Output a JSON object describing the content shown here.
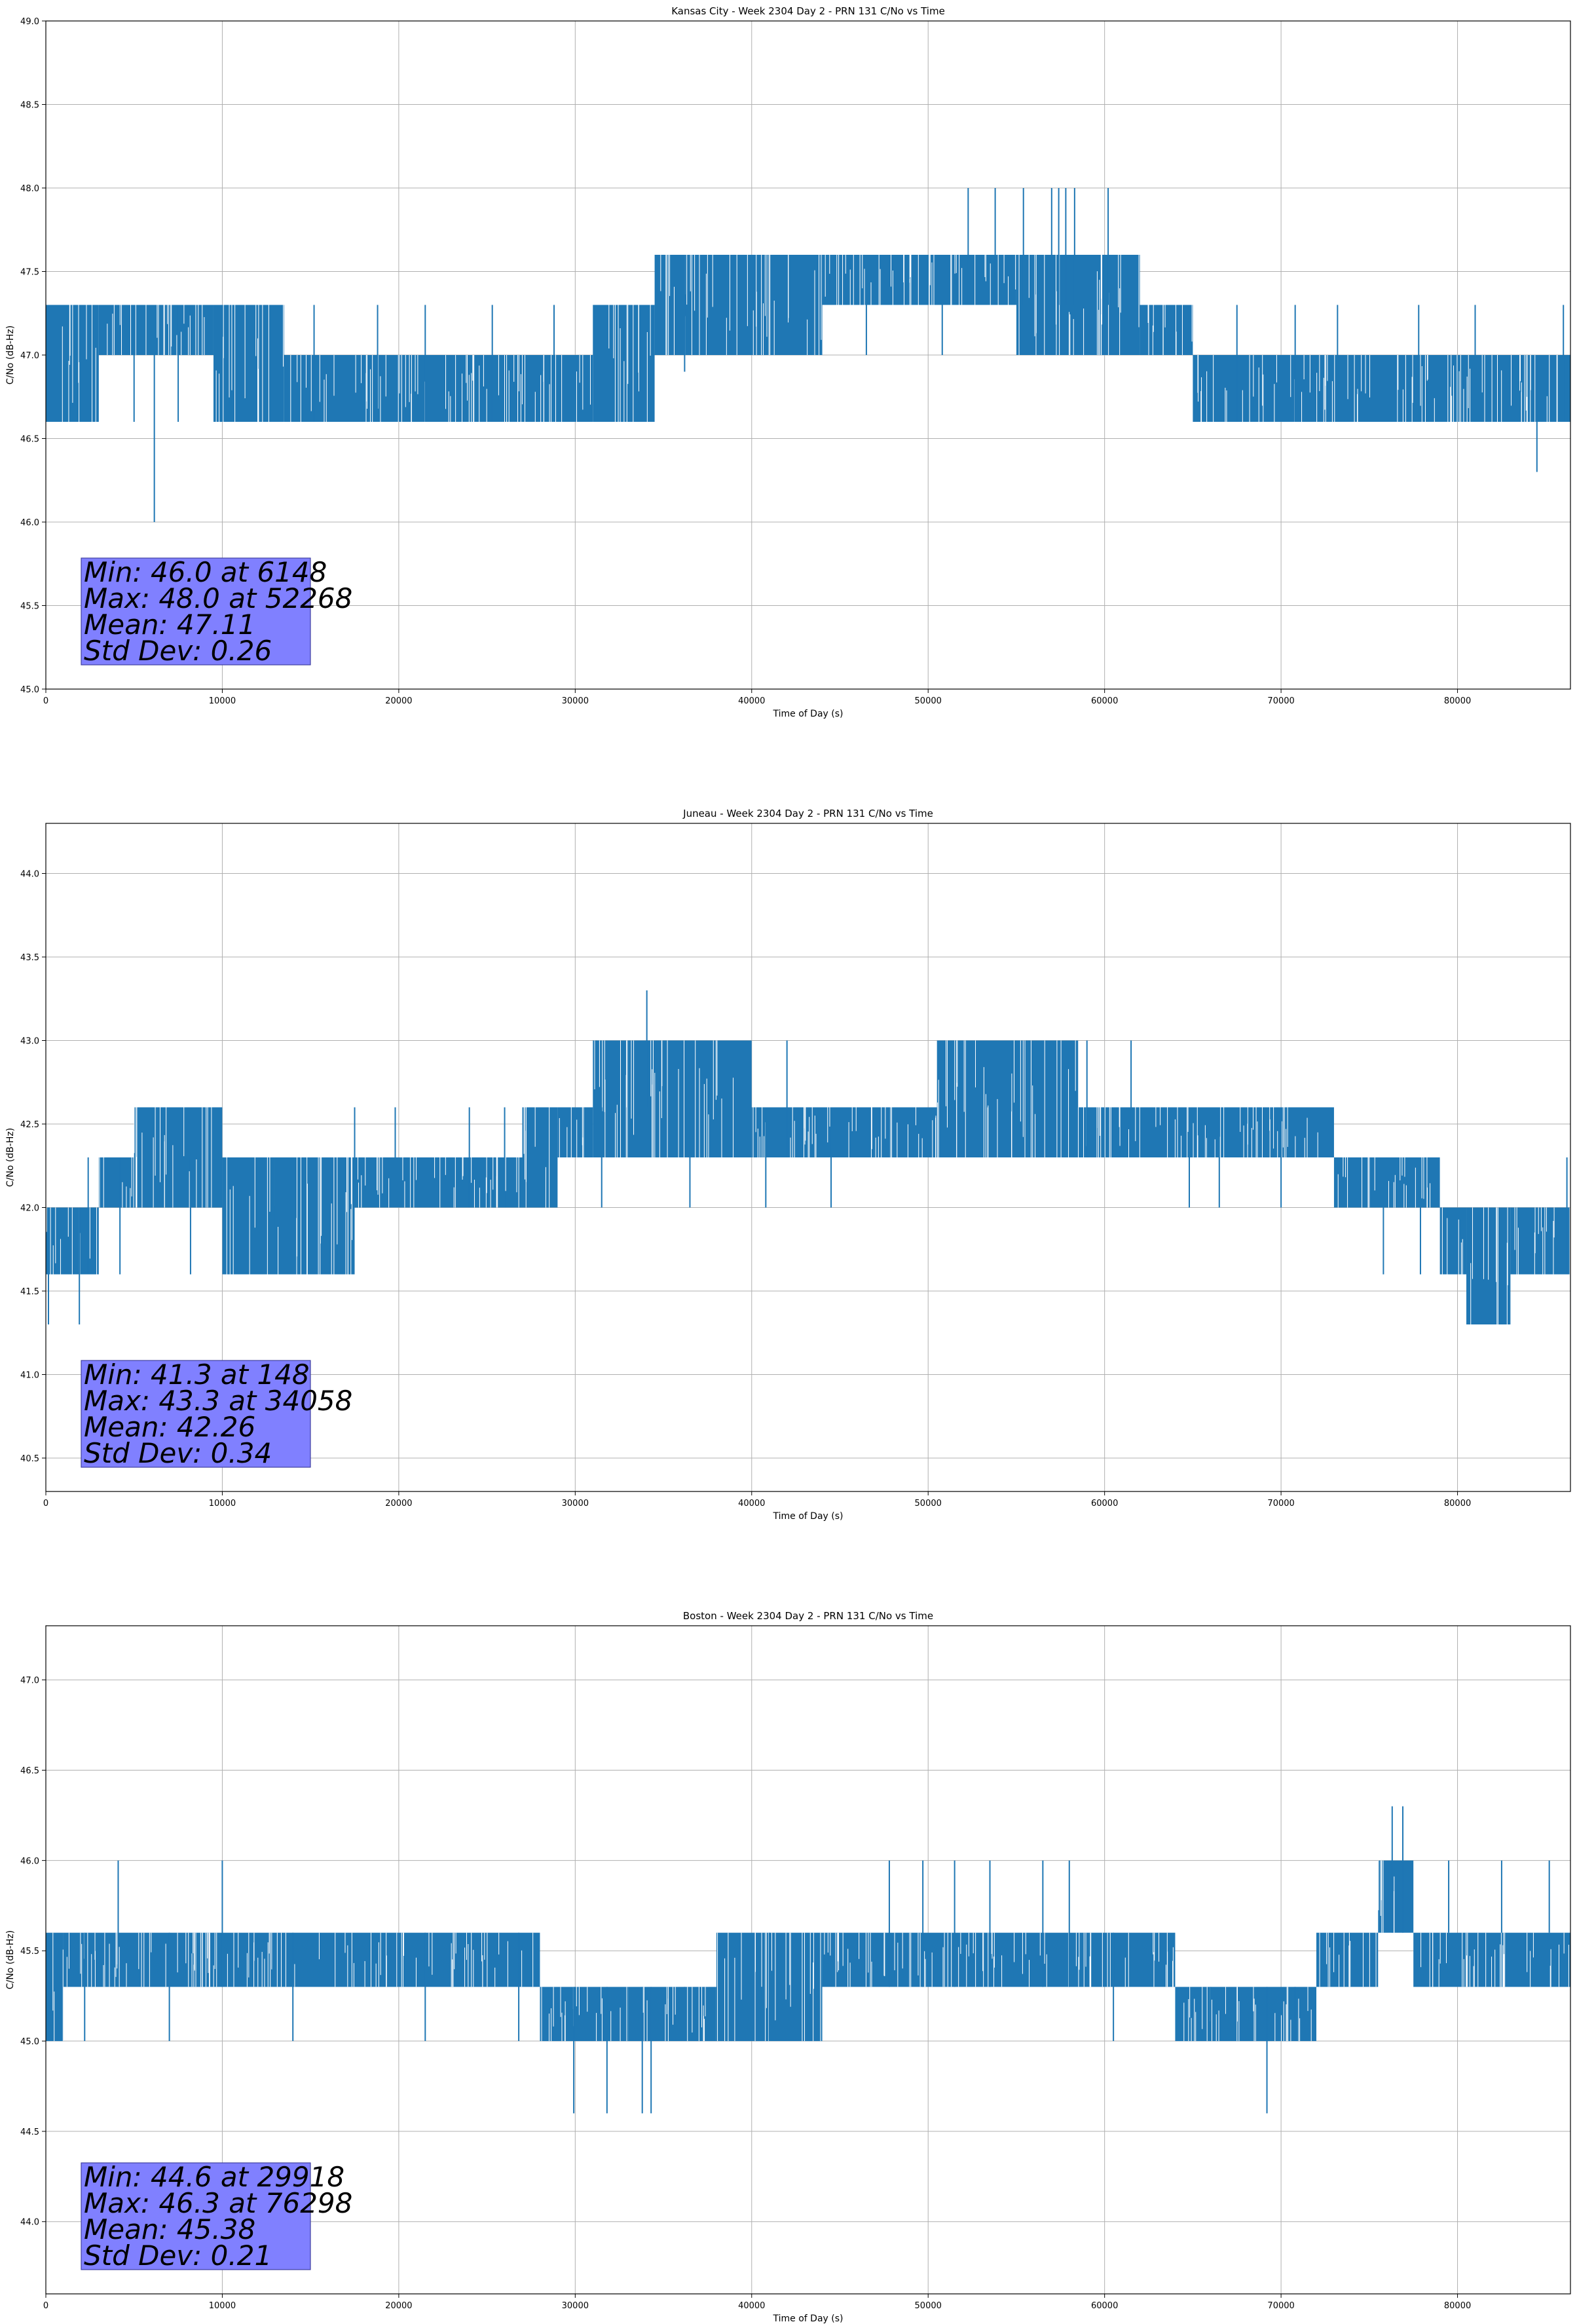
{
  "chart_data": [
    {
      "type": "line",
      "title": "Kansas City - Week 2304 Day 2 - PRN 131 C/No vs Time",
      "xlabel": "Time of Day (s)",
      "ylabel": "C/No (dB-Hz)",
      "xlim": [
        0,
        86400
      ],
      "ylim": [
        45.0,
        49.0
      ],
      "xticks": [
        "0",
        "10000",
        "20000",
        "30000",
        "40000",
        "50000",
        "60000",
        "70000",
        "80000"
      ],
      "yticks": [
        "45.0",
        "45.5",
        "46.0",
        "46.5",
        "47.0",
        "47.5",
        "48.0",
        "48.5",
        "49.0"
      ],
      "grid": true,
      "color": "#1f77b4",
      "series": [
        {
          "bands": [
            {
              "x0": 0,
              "x1": 3000,
              "lo": 46.6,
              "hi": 47.3
            },
            {
              "x0": 3000,
              "x1": 9500,
              "lo": 47.0,
              "hi": 47.3
            },
            {
              "x0": 9500,
              "x1": 13500,
              "lo": 46.6,
              "hi": 47.3
            },
            {
              "x0": 13500,
              "x1": 31000,
              "lo": 46.6,
              "hi": 47.0
            },
            {
              "x0": 31000,
              "x1": 34500,
              "lo": 46.6,
              "hi": 47.3
            },
            {
              "x0": 34500,
              "x1": 44000,
              "lo": 47.0,
              "hi": 47.6
            },
            {
              "x0": 44000,
              "x1": 55000,
              "lo": 47.3,
              "hi": 47.6
            },
            {
              "x0": 55000,
              "x1": 62000,
              "lo": 47.0,
              "hi": 47.6
            },
            {
              "x0": 62000,
              "x1": 65000,
              "lo": 47.0,
              "hi": 47.3
            },
            {
              "x0": 65000,
              "x1": 86400,
              "lo": 46.6,
              "hi": 47.0
            }
          ],
          "spikes": [
            [
              6148,
              46.0,
              47.0
            ],
            [
              52268,
              47.3,
              48.0
            ],
            [
              53800,
              47.3,
              48.0
            ],
            [
              55400,
              47.3,
              48.0
            ],
            [
              57000,
              47.3,
              48.0
            ],
            [
              57400,
              47.3,
              48.0
            ],
            [
              57800,
              47.3,
              48.0
            ],
            [
              58300,
              47.3,
              48.0
            ],
            [
              60200,
              47.3,
              48.0
            ],
            [
              84500,
              46.3,
              47.0
            ],
            [
              1200,
              46.6,
              47.3
            ],
            [
              5000,
              46.6,
              47.3
            ],
            [
              7500,
              46.6,
              47.3
            ],
            [
              15200,
              46.6,
              47.3
            ],
            [
              18800,
              46.6,
              47.3
            ],
            [
              21500,
              46.6,
              47.3
            ],
            [
              25300,
              46.6,
              47.3
            ],
            [
              28800,
              46.6,
              47.3
            ],
            [
              36200,
              46.9,
              47.6
            ],
            [
              46500,
              47.0,
              47.3
            ],
            [
              50800,
              47.0,
              47.3
            ],
            [
              67500,
              46.6,
              47.3
            ],
            [
              70800,
              46.6,
              47.3
            ],
            [
              73200,
              46.6,
              47.3
            ],
            [
              77800,
              46.6,
              47.3
            ],
            [
              81000,
              46.6,
              47.3
            ],
            [
              86000,
              46.6,
              47.3
            ]
          ]
        }
      ],
      "annotation": [
        "Min: 46.0 at 6148",
        "Max: 48.0 at 52268",
        "Mean: 47.11",
        "Std Dev: 0.26"
      ]
    },
    {
      "type": "line",
      "title": "Juneau - Week 2304 Day 2 - PRN 131 C/No vs Time",
      "xlabel": "Time of Day (s)",
      "ylabel": "C/No (dB-Hz)",
      "xlim": [
        0,
        86400
      ],
      "ylim": [
        40.3,
        44.3
      ],
      "xticks": [
        "0",
        "10000",
        "20000",
        "30000",
        "40000",
        "50000",
        "60000",
        "70000",
        "80000"
      ],
      "yticks": [
        "40.5",
        "41.0",
        "41.5",
        "42.0",
        "42.5",
        "43.0",
        "43.5",
        "44.0"
      ],
      "grid": true,
      "color": "#1f77b4",
      "series": [
        {
          "bands": [
            {
              "x0": 0,
              "x1": 3000,
              "lo": 41.6,
              "hi": 42.0
            },
            {
              "x0": 3000,
              "x1": 5000,
              "lo": 42.0,
              "hi": 42.3
            },
            {
              "x0": 5000,
              "x1": 10000,
              "lo": 42.0,
              "hi": 42.6
            },
            {
              "x0": 10000,
              "x1": 17500,
              "lo": 41.6,
              "hi": 42.3
            },
            {
              "x0": 17500,
              "x1": 27000,
              "lo": 42.0,
              "hi": 42.3
            },
            {
              "x0": 27000,
              "x1": 29000,
              "lo": 42.0,
              "hi": 42.6
            },
            {
              "x0": 29000,
              "x1": 31000,
              "lo": 42.3,
              "hi": 42.6
            },
            {
              "x0": 31000,
              "x1": 40000,
              "lo": 42.3,
              "hi": 43.0
            },
            {
              "x0": 40000,
              "x1": 50500,
              "lo": 42.3,
              "hi": 42.6
            },
            {
              "x0": 50500,
              "x1": 58500,
              "lo": 42.3,
              "hi": 43.0
            },
            {
              "x0": 58500,
              "x1": 73000,
              "lo": 42.3,
              "hi": 42.6
            },
            {
              "x0": 73000,
              "x1": 79000,
              "lo": 42.0,
              "hi": 42.3
            },
            {
              "x0": 79000,
              "x1": 80500,
              "lo": 41.6,
              "hi": 42.0
            },
            {
              "x0": 80500,
              "x1": 83000,
              "lo": 41.3,
              "hi": 42.0
            },
            {
              "x0": 83000,
              "x1": 86400,
              "lo": 41.6,
              "hi": 42.0
            }
          ],
          "spikes": [
            [
              148,
              41.3,
              42.0
            ],
            [
              1900,
              41.3,
              42.0
            ],
            [
              34058,
              42.6,
              43.3
            ],
            [
              2400,
              41.6,
              42.3
            ],
            [
              4200,
              41.6,
              42.3
            ],
            [
              8200,
              41.6,
              42.3
            ],
            [
              13000,
              41.6,
              42.3
            ],
            [
              17500,
              42.0,
              42.6
            ],
            [
              19800,
              42.0,
              42.6
            ],
            [
              24000,
              42.0,
              42.6
            ],
            [
              26000,
              42.0,
              42.6
            ],
            [
              31500,
              42.0,
              42.6
            ],
            [
              36500,
              42.0,
              42.6
            ],
            [
              40800,
              42.0,
              42.6
            ],
            [
              42000,
              42.3,
              43.0
            ],
            [
              44500,
              42.0,
              42.6
            ],
            [
              59000,
              42.3,
              43.0
            ],
            [
              61500,
              42.3,
              43.0
            ],
            [
              64800,
              42.0,
              42.6
            ],
            [
              66500,
              42.0,
              42.6
            ],
            [
              70000,
              42.0,
              42.6
            ],
            [
              75800,
              41.6,
              42.3
            ],
            [
              77900,
              41.6,
              42.3
            ],
            [
              86200,
              41.6,
              42.3
            ]
          ]
        }
      ],
      "annotation": [
        "Min: 41.3 at 148",
        "Max: 43.3 at 34058",
        "Mean: 42.26",
        "Std Dev: 0.34"
      ]
    },
    {
      "type": "line",
      "title": "Boston - Week 2304 Day 2 - PRN 131 C/No vs Time",
      "xlabel": "Time of Day (s)",
      "ylabel": "C/No (dB-Hz)",
      "xlim": [
        0,
        86400
      ],
      "ylim": [
        43.6,
        47.3
      ],
      "xticks": [
        "0",
        "10000",
        "20000",
        "30000",
        "40000",
        "50000",
        "60000",
        "70000",
        "80000"
      ],
      "yticks": [
        "44.0",
        "44.5",
        "45.0",
        "45.5",
        "46.0",
        "46.5",
        "47.0"
      ],
      "grid": true,
      "color": "#1f77b4",
      "series": [
        {
          "bands": [
            {
              "x0": 0,
              "x1": 1000,
              "lo": 45.0,
              "hi": 45.6
            },
            {
              "x0": 1000,
              "x1": 28000,
              "lo": 45.3,
              "hi": 45.6
            },
            {
              "x0": 28000,
              "x1": 33000,
              "lo": 45.0,
              "hi": 45.3
            },
            {
              "x0": 33000,
              "x1": 38000,
              "lo": 45.0,
              "hi": 45.3
            },
            {
              "x0": 38000,
              "x1": 44000,
              "lo": 45.0,
              "hi": 45.6
            },
            {
              "x0": 44000,
              "x1": 64000,
              "lo": 45.3,
              "hi": 45.6
            },
            {
              "x0": 64000,
              "x1": 72000,
              "lo": 45.0,
              "hi": 45.3
            },
            {
              "x0": 72000,
              "x1": 75500,
              "lo": 45.3,
              "hi": 45.6
            },
            {
              "x0": 75500,
              "x1": 77500,
              "lo": 45.6,
              "hi": 46.0
            },
            {
              "x0": 77500,
              "x1": 86400,
              "lo": 45.3,
              "hi": 45.6
            }
          ],
          "spikes": [
            [
              29918,
              44.6,
              45.3
            ],
            [
              31800,
              44.6,
              45.3
            ],
            [
              33800,
              44.6,
              45.3
            ],
            [
              34300,
              44.6,
              45.3
            ],
            [
              69200,
              44.6,
              45.3
            ],
            [
              4100,
              45.3,
              46.0
            ],
            [
              10000,
              45.3,
              46.0
            ],
            [
              47800,
              45.3,
              46.0
            ],
            [
              49700,
              45.3,
              46.0
            ],
            [
              51500,
              45.3,
              46.0
            ],
            [
              53500,
              45.3,
              46.0
            ],
            [
              56500,
              45.3,
              46.0
            ],
            [
              58000,
              45.3,
              46.0
            ],
            [
              76298,
              45.6,
              46.3
            ],
            [
              76900,
              45.6,
              46.3
            ],
            [
              79500,
              45.6,
              46.0
            ],
            [
              82500,
              45.6,
              46.0
            ],
            [
              85200,
              45.6,
              46.0
            ],
            [
              2200,
              45.0,
              45.6
            ],
            [
              7000,
              45.0,
              45.6
            ],
            [
              14000,
              45.0,
              45.6
            ],
            [
              21500,
              45.0,
              45.6
            ],
            [
              26800,
              45.0,
              45.6
            ],
            [
              36200,
              45.0,
              45.3
            ],
            [
              41000,
              45.0,
              45.6
            ],
            [
              60500,
              45.0,
              45.6
            ],
            [
              66000,
              45.0,
              45.3
            ],
            [
              70800,
              45.0,
              45.3
            ]
          ]
        }
      ],
      "annotation": [
        "Min: 44.6 at 29918",
        "Max: 46.3 at 76298",
        "Mean: 45.38",
        "Std Dev: 0.21"
      ]
    }
  ]
}
